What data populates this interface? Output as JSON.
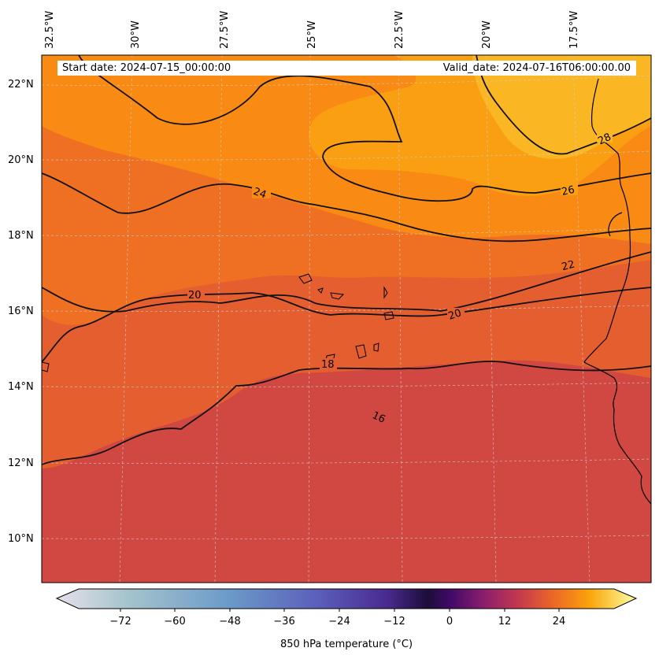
{
  "header": {
    "start_date": "Start date: 2024-07-15_00:00:00",
    "valid_date": "Valid_date: 2024-07-16T06:00:00.00"
  },
  "map": {
    "lon_labels": [
      "32.5°W",
      "30°W",
      "27.5°W",
      "25°W",
      "22.5°W",
      "20°W",
      "17.5°W"
    ],
    "lat_labels": [
      "22°N",
      "20°N",
      "18°N",
      "16°N",
      "14°N",
      "12°N",
      "10°N"
    ],
    "contour_labels": [
      "24",
      "26",
      "28",
      "22",
      "20",
      "20",
      "18",
      "16"
    ]
  },
  "colorbar": {
    "ticks": [
      "−72",
      "−60",
      "−48",
      "−36",
      "−24",
      "−12",
      "0",
      "12",
      "24"
    ],
    "label": "850 hPa temperature (",
    "unit": "°C",
    "label_close": ")"
  },
  "colors": {
    "warm_deep": "#d14741",
    "warm_mid": "#e55e30",
    "orange": "#f98a13",
    "yellow_orange": "#fbb623",
    "coast": "#000000"
  }
}
